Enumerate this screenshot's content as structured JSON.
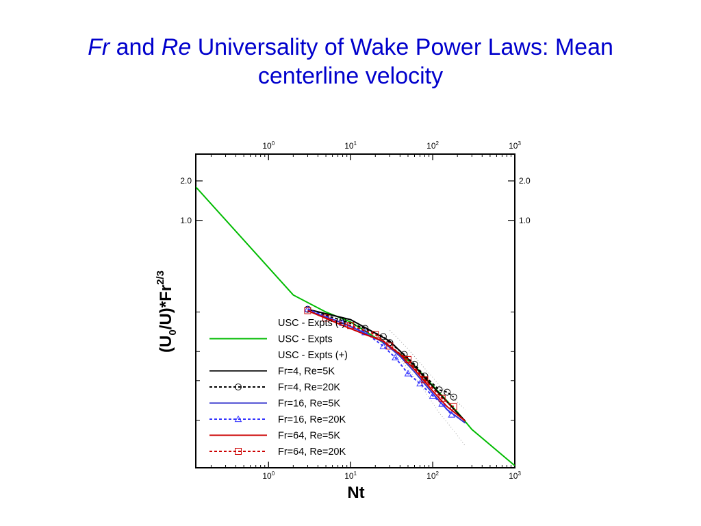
{
  "slide": {
    "title_it1": "Fr",
    "title_t1": " and ",
    "title_it2": "Re",
    "title_t2": " Universality of Wake Power Laws: Mean",
    "title_line2": "centerline velocity"
  },
  "chart_data": {
    "type": "line",
    "title": "",
    "xlabel": "Nt",
    "ylabel_main": "(U",
    "ylabel_sub": "0",
    "ylabel_mid": "/U)*Fr",
    "ylabel_sup": "2/3",
    "xscale": "log",
    "yscale": "log",
    "xlim": [
      0.13,
      1000
    ],
    "ylim": [
      0.013,
      3.2
    ],
    "grid": false,
    "legend_position": "lower-left inside plot",
    "x_ticks": [
      {
        "value": 1,
        "base": "10",
        "exp": "0"
      },
      {
        "value": 10,
        "base": "10",
        "exp": "1"
      },
      {
        "value": 100,
        "base": "10",
        "exp": "2"
      },
      {
        "value": 1000,
        "base": "10",
        "exp": "3"
      }
    ],
    "y_tick_labels": [
      {
        "value": 2.0,
        "label": "2.0"
      },
      {
        "value": 1.0,
        "label": "1.0"
      }
    ],
    "y_minor_ticks": [
      0.2,
      0.1,
      0.06,
      0.03
    ],
    "series": [
      {
        "name": "USC - Expts (-)",
        "color": "#999999",
        "style": "dotted",
        "x": [
          30,
          50,
          80,
          120,
          180,
          250
        ],
        "y": [
          0.11,
          0.074,
          0.05,
          0.034,
          0.025,
          0.019
        ]
      },
      {
        "name": "USC - Expts",
        "color": "#00bb00",
        "style": "solid",
        "x": [
          0.13,
          2.0,
          5.0,
          10.0,
          20.0,
          40.0,
          60.0,
          100.0,
          200.0,
          300.0,
          1000.0
        ],
        "y": [
          1.8,
          0.27,
          0.2,
          0.168,
          0.128,
          0.096,
          0.078,
          0.055,
          0.0345,
          0.0255,
          0.0135
        ]
      },
      {
        "name": "USC - Expts (+)",
        "color": "#999999",
        "style": "dotted",
        "x": [
          30,
          50,
          80,
          120,
          180,
          250
        ],
        "y": [
          0.145,
          0.105,
          0.074,
          0.056,
          0.044,
          0.036
        ]
      },
      {
        "name": "Fr=4, Re=5K",
        "color": "#000000",
        "style": "solid",
        "marker": "none",
        "x": [
          3.0,
          10.0,
          20.0,
          30.0,
          50.0,
          80.0,
          120.0,
          200.0,
          250.0
        ],
        "y": [
          0.21,
          0.175,
          0.138,
          0.12,
          0.088,
          0.063,
          0.048,
          0.034,
          0.0295
        ]
      },
      {
        "name": "Fr=4, Re=20K",
        "color": "#000000",
        "style": "dashed",
        "marker": "circle",
        "x": [
          3.0,
          8.0,
          15.0,
          25.0,
          30.0,
          45.0,
          60.0,
          80.0,
          120.0,
          150.0,
          180.0
        ],
        "y": [
          0.21,
          0.172,
          0.15,
          0.13,
          0.117,
          0.095,
          0.08,
          0.065,
          0.051,
          0.049,
          0.045
        ]
      },
      {
        "name": "Fr=16, Re=5K",
        "color": "#3333cc",
        "style": "solid",
        "marker": "none",
        "x": [
          3.0,
          8.0,
          15.0,
          25.0,
          40.0,
          60.0,
          100.0,
          150.0,
          250.0
        ],
        "y": [
          0.205,
          0.165,
          0.138,
          0.118,
          0.092,
          0.07,
          0.048,
          0.036,
          0.0285
        ]
      },
      {
        "name": "Fr=16, Re=20K",
        "color": "#3333ff",
        "style": "dashed",
        "marker": "triangle",
        "x": [
          3.0,
          8.0,
          15.0,
          25.0,
          35.0,
          50.0,
          70.0,
          100.0,
          130.0,
          170.0
        ],
        "y": [
          0.21,
          0.165,
          0.14,
          0.11,
          0.09,
          0.068,
          0.057,
          0.046,
          0.04,
          0.033
        ]
      },
      {
        "name": "Fr=64, Re=5K",
        "color": "#cc0000",
        "style": "solid",
        "marker": "none",
        "x": [
          3.0,
          8.0,
          15.0,
          25.0,
          40.0,
          60.0,
          100.0,
          150.0,
          250.0
        ],
        "y": [
          0.205,
          0.158,
          0.135,
          0.12,
          0.095,
          0.073,
          0.05,
          0.038,
          0.0295
        ]
      },
      {
        "name": "Fr=64, Re=20K",
        "color": "#cc0000",
        "style": "dashed",
        "marker": "square",
        "x": [
          3.0,
          5.0,
          10.0,
          20.0,
          30.0,
          50.0,
          80.0,
          130.0,
          180.0
        ],
        "y": [
          0.205,
          0.18,
          0.158,
          0.135,
          0.11,
          0.087,
          0.061,
          0.044,
          0.038
        ]
      }
    ]
  }
}
